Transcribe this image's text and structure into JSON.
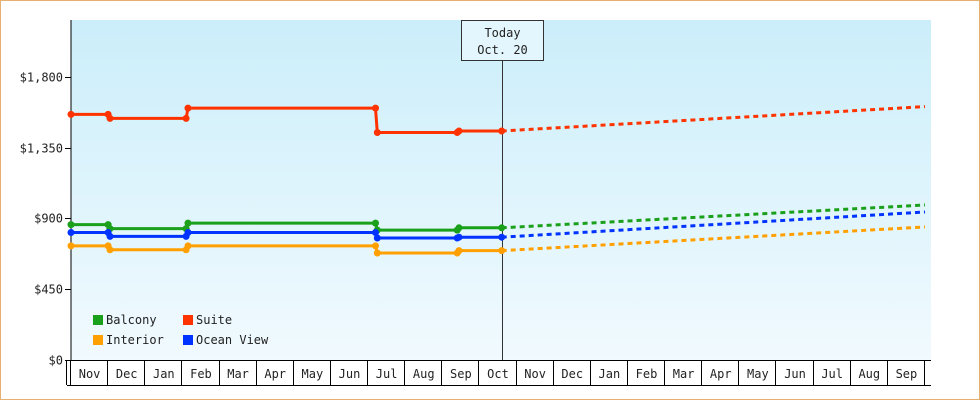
{
  "chart_data": {
    "type": "line",
    "title": "",
    "xlabel": "",
    "ylabel": "",
    "ylim": [
      0,
      2160
    ],
    "y_ticks": [
      {
        "value": 0,
        "label": "$0"
      },
      {
        "value": 450,
        "label": "$450"
      },
      {
        "value": 900,
        "label": "$900"
      },
      {
        "value": 1350,
        "label": "$1,350"
      },
      {
        "value": 1800,
        "label": "$1,800"
      }
    ],
    "x_tick_labels": [
      "Nov",
      "Dec",
      "Jan",
      "Feb",
      "Mar",
      "Apr",
      "May",
      "Jun",
      "Jul",
      "Aug",
      "Sep",
      "Oct",
      "Nov",
      "Dec",
      "Jan",
      "Feb",
      "Mar",
      "Apr",
      "May",
      "Jun",
      "Jul",
      "Aug",
      "Sep"
    ],
    "today": {
      "line1": "Today",
      "line2": "Oct. 20",
      "x": 11.6
    },
    "grid": false,
    "legend_position": "bottom-left",
    "colors": {
      "Balcony": "#1aa01a",
      "Suite": "#ff3300",
      "Interior": "#ffa000",
      "Ocean View": "#0033ff"
    },
    "series": [
      {
        "name": "Suite",
        "color": "#ff3300",
        "actual": [
          {
            "x": 0.0,
            "y": 1560
          },
          {
            "x": 1.0,
            "y": 1560
          },
          {
            "x": 1.05,
            "y": 1535
          },
          {
            "x": 3.1,
            "y": 1535
          },
          {
            "x": 3.15,
            "y": 1600
          },
          {
            "x": 8.2,
            "y": 1600
          },
          {
            "x": 8.25,
            "y": 1445
          },
          {
            "x": 10.4,
            "y": 1445
          },
          {
            "x": 10.45,
            "y": 1455
          },
          {
            "x": 11.6,
            "y": 1455
          }
        ],
        "forecast": [
          {
            "x": 11.6,
            "y": 1455
          },
          {
            "x": 23.0,
            "y": 1610
          }
        ]
      },
      {
        "name": "Balcony",
        "color": "#1aa01a",
        "actual": [
          {
            "x": 0.0,
            "y": 860
          },
          {
            "x": 1.0,
            "y": 860
          },
          {
            "x": 1.05,
            "y": 835
          },
          {
            "x": 3.1,
            "y": 835
          },
          {
            "x": 3.15,
            "y": 870
          },
          {
            "x": 8.2,
            "y": 870
          },
          {
            "x": 8.25,
            "y": 825
          },
          {
            "x": 10.4,
            "y": 825
          },
          {
            "x": 10.45,
            "y": 840
          },
          {
            "x": 11.6,
            "y": 840
          }
        ],
        "forecast": [
          {
            "x": 11.6,
            "y": 840
          },
          {
            "x": 23.0,
            "y": 985
          }
        ]
      },
      {
        "name": "Ocean View",
        "color": "#0033ff",
        "actual": [
          {
            "x": 0.0,
            "y": 810
          },
          {
            "x": 1.0,
            "y": 810
          },
          {
            "x": 1.05,
            "y": 785
          },
          {
            "x": 3.1,
            "y": 785
          },
          {
            "x": 3.15,
            "y": 810
          },
          {
            "x": 8.2,
            "y": 810
          },
          {
            "x": 8.25,
            "y": 775
          },
          {
            "x": 10.4,
            "y": 775
          },
          {
            "x": 10.45,
            "y": 780
          },
          {
            "x": 11.6,
            "y": 780
          }
        ],
        "forecast": [
          {
            "x": 11.6,
            "y": 780
          },
          {
            "x": 23.0,
            "y": 940
          }
        ]
      },
      {
        "name": "Interior",
        "color": "#ffa000",
        "actual": [
          {
            "x": 0.0,
            "y": 725
          },
          {
            "x": 1.0,
            "y": 725
          },
          {
            "x": 1.05,
            "y": 700
          },
          {
            "x": 3.1,
            "y": 700
          },
          {
            "x": 3.15,
            "y": 725
          },
          {
            "x": 8.2,
            "y": 725
          },
          {
            "x": 8.25,
            "y": 680
          },
          {
            "x": 10.4,
            "y": 680
          },
          {
            "x": 10.45,
            "y": 695
          },
          {
            "x": 11.6,
            "y": 695
          }
        ],
        "forecast": [
          {
            "x": 11.6,
            "y": 695
          },
          {
            "x": 23.0,
            "y": 845
          }
        ]
      }
    ],
    "legend": [
      {
        "name": "Balcony",
        "color": "#1aa01a"
      },
      {
        "name": "Suite",
        "color": "#ff3300"
      },
      {
        "name": "Interior",
        "color": "#ffa000"
      },
      {
        "name": "Ocean View",
        "color": "#0033ff"
      }
    ]
  }
}
